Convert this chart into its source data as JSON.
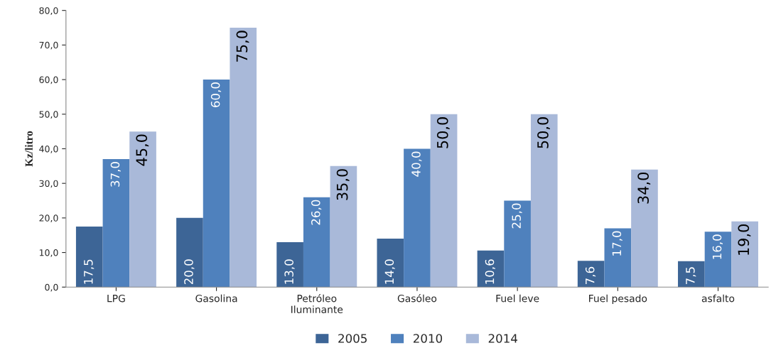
{
  "chart_data": {
    "type": "bar",
    "ylabel": "Kz/litro",
    "categories": [
      "LPG",
      "Gasolina",
      "Petróleo\nIluminante",
      "Gasóleo",
      "Fuel leve",
      "Fuel pesado",
      "asfalto"
    ],
    "series": [
      {
        "name": "2005",
        "color": "#3d6596",
        "values": [
          17.5,
          20.0,
          13.0,
          14.0,
          10.6,
          7.6,
          7.5
        ],
        "value_labels": [
          "17,5",
          "20,0",
          "13,0",
          "14,0",
          "10,6",
          "7,6",
          "7,5"
        ]
      },
      {
        "name": "2010",
        "color": "#4f81bd",
        "values": [
          37.0,
          60.0,
          26.0,
          40.0,
          25.0,
          17.0,
          16.0
        ],
        "value_labels": [
          "37,0",
          "60,0",
          "26,0",
          "40,0",
          "25,0",
          "17,0",
          "16,0"
        ]
      },
      {
        "name": "2014",
        "color": "#a9b9d9",
        "values": [
          45.0,
          75.0,
          35.0,
          50.0,
          50.0,
          34.0,
          19.0
        ],
        "value_labels": [
          "45,0",
          "75,0",
          "35,0",
          "50,0",
          "50,0",
          "34,0",
          "19,0"
        ]
      }
    ],
    "ylim": [
      0,
      80
    ],
    "yticks": [
      {
        "value": 0,
        "label": "0,0"
      },
      {
        "value": 10,
        "label": "10,0"
      },
      {
        "value": 20,
        "label": "20,0"
      },
      {
        "value": 30,
        "label": "30,0"
      },
      {
        "value": 40,
        "label": "40,0"
      },
      {
        "value": 50,
        "label": "50,0"
      },
      {
        "value": 60,
        "label": "60,0"
      },
      {
        "value": 70,
        "label": "70,0"
      },
      {
        "value": 80,
        "label": "80,0"
      }
    ],
    "grid": false,
    "legend": "bottom"
  }
}
